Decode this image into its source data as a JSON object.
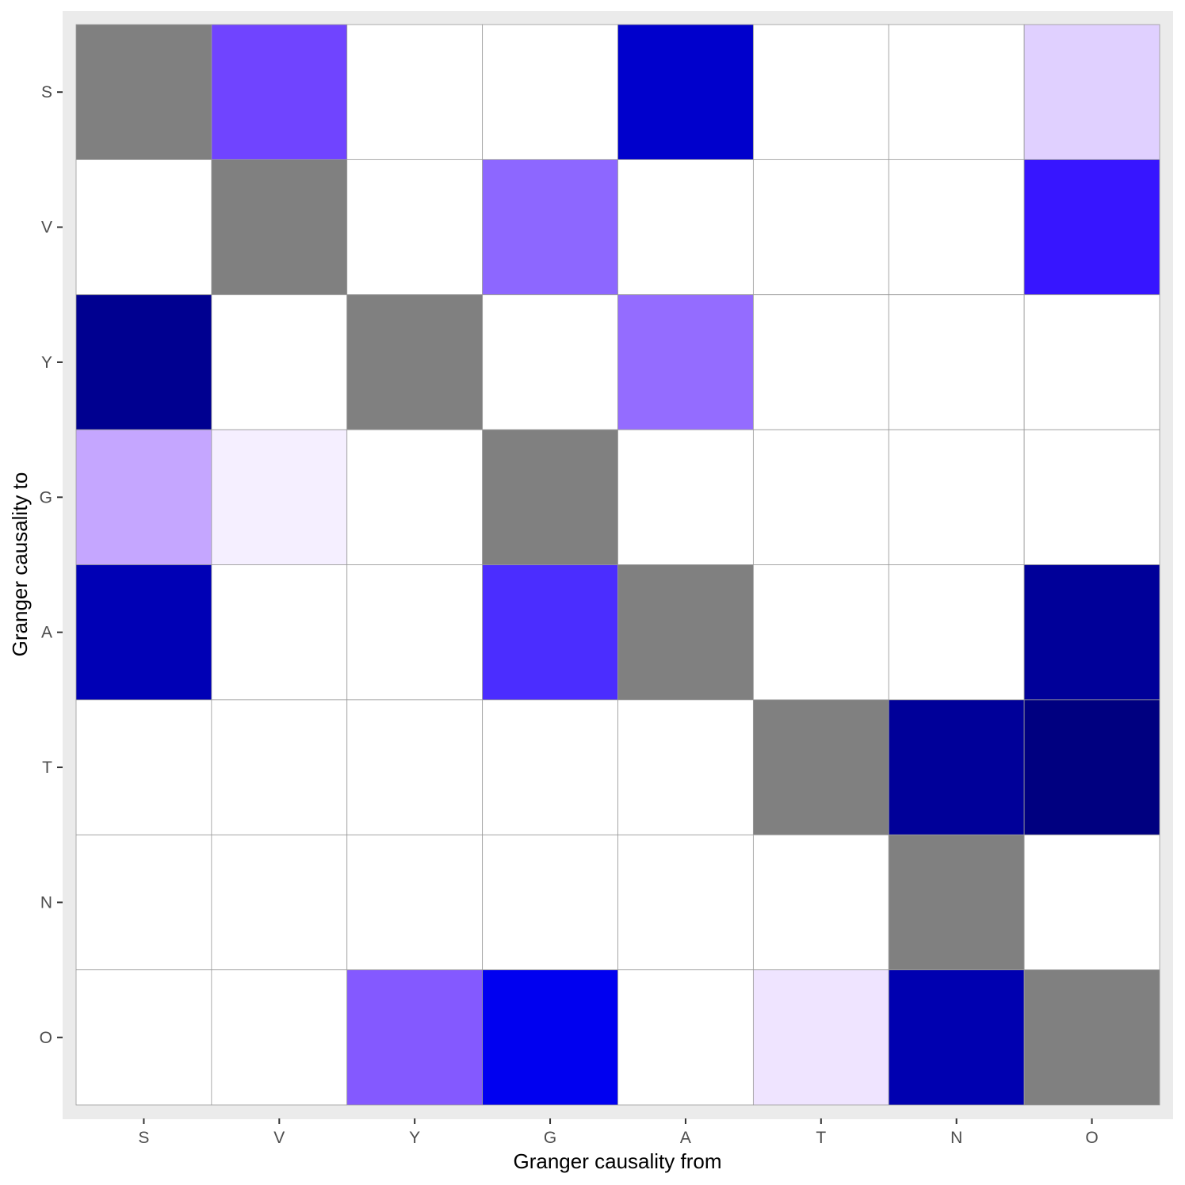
{
  "chart_data": {
    "type": "heatmap",
    "xlabel": "Granger causality from",
    "ylabel": "Granger causality to",
    "x_categories": [
      "S",
      "V",
      "Y",
      "G",
      "A",
      "T",
      "N",
      "O"
    ],
    "y_categories": [
      "S",
      "V",
      "Y",
      "G",
      "A",
      "T",
      "N",
      "O"
    ],
    "diagonal_color": "#808080",
    "panel_background": "#ebebeb",
    "legend": "none",
    "cell_colors": [
      [
        "#808080",
        "#7044ff",
        "#ffffff",
        "#ffffff",
        "#0000cc",
        "#ffffff",
        "#ffffff",
        "#e0d0ff"
      ],
      [
        "#ffffff",
        "#808080",
        "#ffffff",
        "#8d67ff",
        "#ffffff",
        "#ffffff",
        "#ffffff",
        "#3715ff"
      ],
      [
        "#000090",
        "#ffffff",
        "#808080",
        "#ffffff",
        "#946cff",
        "#ffffff",
        "#ffffff",
        "#ffffff"
      ],
      [
        "#c5a6ff",
        "#f5efff",
        "#ffffff",
        "#808080",
        "#ffffff",
        "#ffffff",
        "#ffffff",
        "#ffffff"
      ],
      [
        "#0000b5",
        "#ffffff",
        "#ffffff",
        "#4b2dff",
        "#808080",
        "#ffffff",
        "#ffffff",
        "#000099"
      ],
      [
        "#ffffff",
        "#ffffff",
        "#ffffff",
        "#ffffff",
        "#ffffff",
        "#808080",
        "#000099",
        "#000080"
      ],
      [
        "#ffffff",
        "#ffffff",
        "#ffffff",
        "#ffffff",
        "#ffffff",
        "#ffffff",
        "#808080",
        "#ffffff"
      ],
      [
        "#ffffff",
        "#ffffff",
        "#8459ff",
        "#0000f0",
        "#ffffff",
        "#efe4ff",
        "#0000b0",
        "#808080"
      ]
    ]
  }
}
